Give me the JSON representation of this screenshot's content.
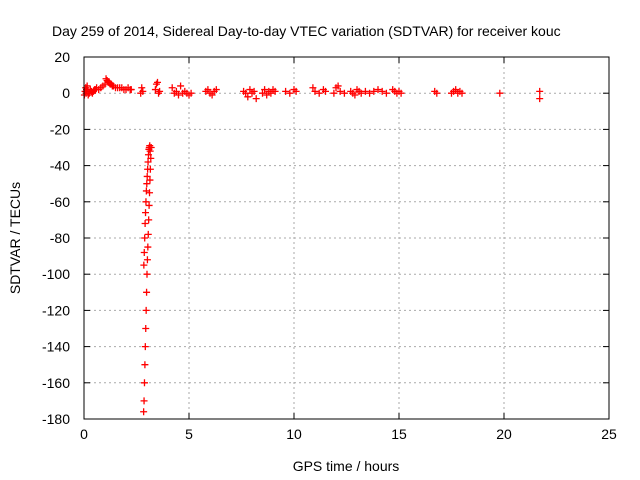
{
  "chart_data": {
    "type": "scatter",
    "title": "Day 259 of 2014, Sidereal Day-to-day VTEC variation (SDTVAR) for receiver kouc",
    "xlabel": "GPS time / hours",
    "ylabel": "SDTVAR / TECUs",
    "xlim": [
      0,
      25
    ],
    "ylim": [
      -180,
      20
    ],
    "xticks": [
      0,
      5,
      10,
      15,
      20,
      25
    ],
    "yticks": [
      -180,
      -160,
      -140,
      -120,
      -100,
      -80,
      -60,
      -40,
      -20,
      0,
      20
    ],
    "grid": true,
    "marker": "+",
    "color": "#ff0000",
    "series": [
      {
        "name": "SDTVAR",
        "x": [
          0.02,
          0.05,
          0.08,
          0.1,
          0.12,
          0.15,
          0.18,
          0.2,
          0.25,
          0.3,
          0.35,
          0.4,
          0.45,
          0.5,
          0.55,
          0.6,
          0.7,
          0.8,
          0.9,
          1.0,
          1.05,
          1.1,
          1.15,
          1.2,
          1.25,
          1.3,
          1.35,
          1.4,
          1.5,
          1.6,
          1.7,
          1.8,
          1.9,
          2.0,
          2.1,
          2.2,
          2.25,
          2.7,
          2.75,
          2.8,
          2.84,
          2.86,
          2.88,
          2.9,
          2.92,
          2.94,
          2.96,
          2.98,
          3.0,
          3.02,
          3.04,
          3.06,
          3.08,
          3.1,
          3.12,
          3.14,
          3.16,
          3.18,
          3.2,
          2.85,
          2.87,
          2.89,
          2.91,
          2.93,
          2.95,
          2.97,
          2.99,
          3.01,
          3.03,
          3.05,
          3.07,
          3.09,
          3.11,
          3.13,
          3.15,
          3.4,
          3.45,
          3.5,
          3.55,
          3.6,
          4.2,
          4.3,
          4.4,
          4.5,
          4.6,
          4.7,
          4.8,
          4.9,
          5.0,
          5.1,
          5.8,
          5.9,
          6.0,
          6.1,
          6.2,
          6.3,
          7.6,
          7.7,
          7.8,
          7.9,
          8.0,
          8.1,
          8.2,
          8.5,
          8.6,
          8.7,
          8.8,
          8.9,
          9.0,
          9.1,
          9.6,
          9.8,
          10.0,
          10.1,
          10.9,
          11.0,
          11.2,
          11.4,
          11.5,
          11.9,
          12.0,
          12.1,
          12.2,
          12.4,
          12.7,
          12.8,
          12.9,
          13.0,
          13.1,
          13.2,
          13.4,
          13.6,
          13.8,
          14.0,
          14.2,
          14.4,
          14.7,
          14.8,
          14.9,
          15.0,
          15.1,
          16.7,
          16.8,
          17.5,
          17.6,
          17.7,
          17.8,
          17.9,
          18.0,
          19.8,
          21.7,
          21.7
        ],
        "y": [
          -1,
          1,
          3,
          0,
          2,
          4,
          1,
          -1,
          0,
          2,
          1,
          0,
          1,
          2,
          2,
          3,
          2,
          3,
          4,
          5,
          8,
          7,
          6,
          6,
          5,
          5,
          4,
          4,
          3,
          3,
          3,
          3,
          2,
          2,
          3,
          2,
          2,
          0,
          3,
          1,
          -176,
          -170,
          -160,
          -150,
          -140,
          -130,
          -120,
          -110,
          -100,
          -92,
          -85,
          -78,
          -70,
          -62,
          -55,
          -48,
          -42,
          -36,
          -30,
          -95,
          -88,
          -80,
          -72,
          -66,
          -60,
          -54,
          -50,
          -46,
          -42,
          -38,
          -34,
          -31,
          -30,
          -29,
          -32,
          2,
          5,
          6,
          0,
          1,
          3,
          0,
          1,
          -1,
          4,
          0,
          1,
          0,
          -1,
          0,
          1,
          2,
          0,
          -1,
          1,
          2,
          1,
          0,
          -2,
          2,
          0,
          1,
          -3,
          0,
          2,
          -1,
          1,
          0,
          2,
          1,
          1,
          0,
          2,
          1,
          3,
          1,
          0,
          2,
          1,
          0,
          3,
          4,
          1,
          0,
          1,
          0,
          -1,
          2,
          1,
          0,
          1,
          0,
          1,
          2,
          1,
          0,
          2,
          1,
          0,
          1,
          0,
          1,
          0,
          0,
          1,
          2,
          0,
          1,
          0,
          0,
          1,
          -3
        ]
      }
    ]
  }
}
